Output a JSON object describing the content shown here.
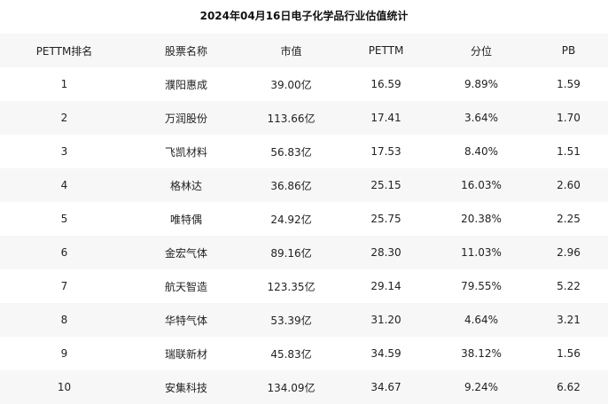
{
  "chart_data": {
    "type": "table",
    "title": "2024年04月16日电子化学品行业估值统计",
    "columns": [
      "PETTM排名",
      "股票名称",
      "市值",
      "PETTM",
      "分位",
      "PB"
    ],
    "rows": [
      [
        "1",
        "濮阳惠成",
        "39.00亿",
        "16.59",
        "9.89%",
        "1.59"
      ],
      [
        "2",
        "万润股份",
        "113.66亿",
        "17.41",
        "3.64%",
        "1.70"
      ],
      [
        "3",
        "飞凯材料",
        "56.83亿",
        "17.53",
        "8.40%",
        "1.51"
      ],
      [
        "4",
        "格林达",
        "36.86亿",
        "25.15",
        "16.03%",
        "2.60"
      ],
      [
        "5",
        "唯特偶",
        "24.92亿",
        "25.75",
        "20.38%",
        "2.25"
      ],
      [
        "6",
        "金宏气体",
        "89.16亿",
        "28.30",
        "11.03%",
        "2.96"
      ],
      [
        "7",
        "航天智造",
        "123.35亿",
        "29.14",
        "79.55%",
        "5.22"
      ],
      [
        "8",
        "华特气体",
        "53.39亿",
        "31.20",
        "4.64%",
        "3.21"
      ],
      [
        "9",
        "瑞联新材",
        "45.83亿",
        "34.59",
        "38.12%",
        "1.56"
      ],
      [
        "10",
        "安集科技",
        "134.09亿",
        "34.67",
        "9.24%",
        "6.62"
      ]
    ],
    "colors": {
      "stripe": "#f7f7f7",
      "background": "#ffffff",
      "text": "#222222"
    }
  }
}
